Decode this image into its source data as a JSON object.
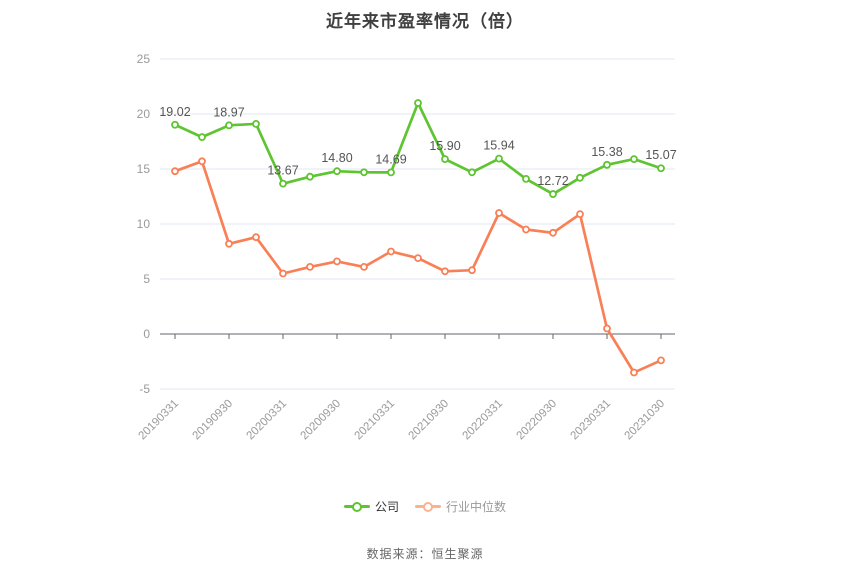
{
  "title": "近年来市盈率情况（倍）",
  "source": "数据来源：恒生聚源",
  "legend": [
    {
      "label": "公司",
      "color": "#5ec431",
      "text_color": "#333333"
    },
    {
      "label": "行业中位数",
      "color": "#fbb28f",
      "text_color": "#999999"
    }
  ],
  "chart_data": {
    "type": "line",
    "title": "近年来市盈率情况（倍）",
    "x_tick_labels": [
      "20190331",
      "20190930",
      "20200331",
      "20200930",
      "20210331",
      "20210930",
      "20220331",
      "20220930",
      "20230331",
      "20231030"
    ],
    "points_per_tick": 2,
    "n_points": 19,
    "ylim": [
      -5,
      25
    ],
    "y_ticks": [
      25,
      20,
      15,
      10,
      5,
      0,
      -5
    ],
    "grid": true,
    "x_axis_on_zero": true,
    "legend_position": "bottom",
    "series": [
      {
        "name": "公司",
        "color": "#5ec431",
        "values": [
          19.02,
          17.9,
          18.97,
          19.1,
          13.67,
          14.3,
          14.8,
          14.7,
          14.69,
          21.0,
          15.9,
          14.7,
          15.94,
          14.1,
          12.72,
          14.2,
          15.38,
          15.9,
          15.07
        ],
        "point_labels": {
          "0": "19.02",
          "2": "18.97",
          "4": "13.67",
          "6": "14.80",
          "8": "14.69",
          "10": "15.90",
          "12": "15.94",
          "14": "12.72",
          "16": "15.38",
          "18": "15.07"
        }
      },
      {
        "name": "行业中位数",
        "color": "#f98056",
        "values": [
          14.8,
          15.7,
          8.2,
          8.8,
          5.5,
          6.1,
          6.6,
          6.1,
          7.5,
          6.9,
          5.7,
          5.8,
          11.0,
          9.5,
          9.2,
          10.9,
          0.5,
          -3.5,
          -2.4
        ],
        "point_labels": {}
      }
    ],
    "colors": {
      "grid_line": "#e2e8f0",
      "axis_line": "#61656d",
      "tick_label": "#999999",
      "data_label": "#555555"
    }
  }
}
